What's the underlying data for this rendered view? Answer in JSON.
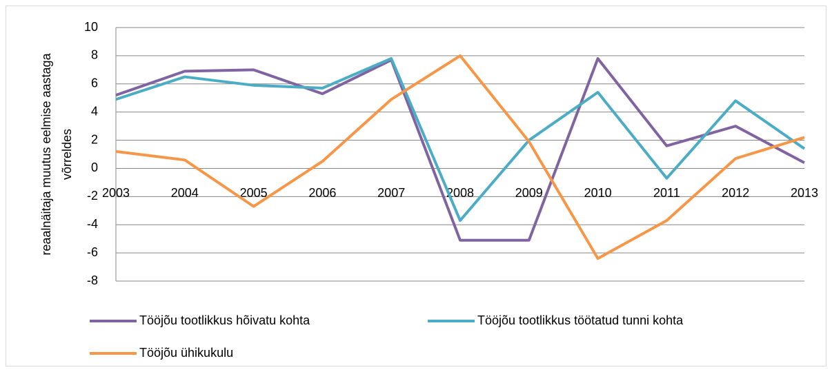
{
  "chart_data": {
    "type": "line",
    "y_label": [
      "reaalnäitaja muutus eelmise aastaga",
      "võrreldes"
    ],
    "categories": [
      "2003",
      "2004",
      "2005",
      "2006",
      "2007",
      "2008",
      "2009",
      "2010",
      "2011",
      "2012",
      "2013"
    ],
    "series": [
      {
        "name": "Tööjõu tootlikkus hõivatu kohta",
        "color": "#8064a2",
        "values": [
          5.2,
          6.9,
          7.0,
          5.3,
          7.7,
          -5.1,
          -5.1,
          7.8,
          1.6,
          3.0,
          0.4
        ]
      },
      {
        "name": "Tööjõu tootlikkus töötatud tunni kohta",
        "color": "#4bacc6",
        "values": [
          4.9,
          6.5,
          5.9,
          5.7,
          7.8,
          -3.7,
          2.0,
          5.4,
          -0.7,
          4.8,
          1.4
        ]
      },
      {
        "name": "Tööjõu ühikukulu",
        "color": "#f79646",
        "values": [
          1.2,
          0.6,
          -2.7,
          0.5,
          4.9,
          8.0,
          1.9,
          -6.4,
          -3.7,
          0.7,
          2.2
        ]
      }
    ],
    "ylim": [
      -8,
      10
    ],
    "yticks": [
      -8,
      -6,
      -4,
      -2,
      0,
      2,
      4,
      6,
      8,
      10
    ],
    "grid": true
  }
}
